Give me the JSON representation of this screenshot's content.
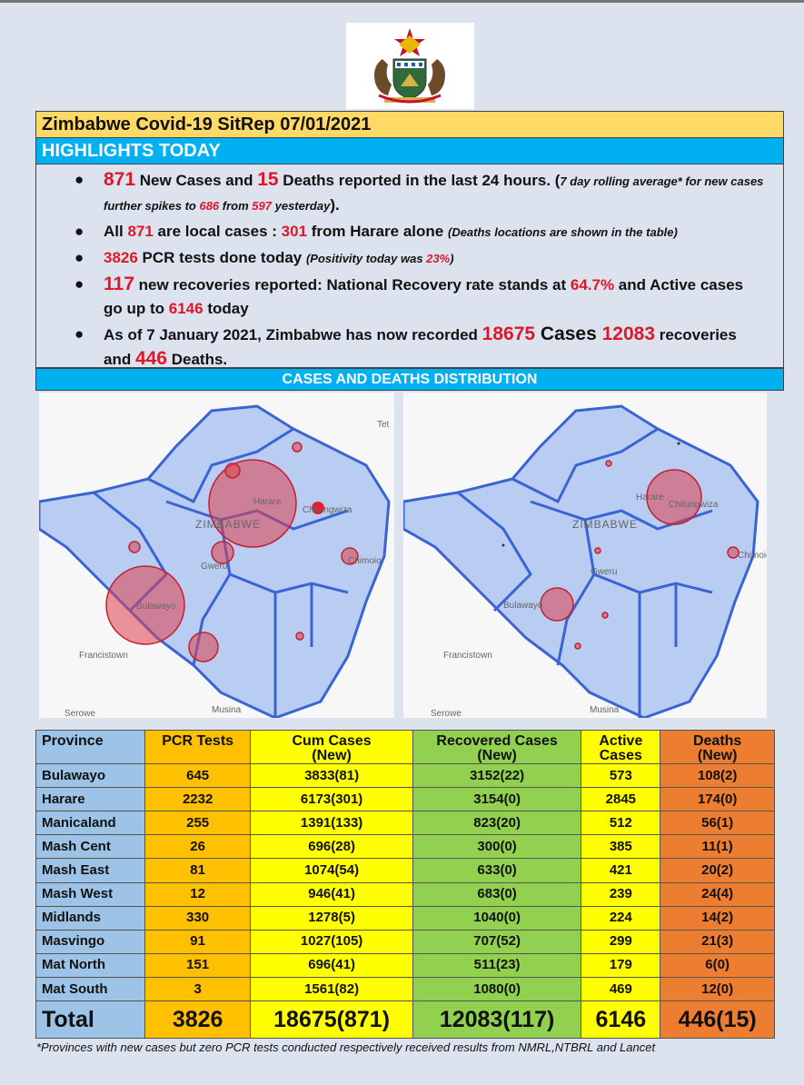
{
  "header": {
    "title": "Zimbabwe Covid-19 SitRep 07/01/2021",
    "highlights_label": "HIGHLIGHTS TODAY",
    "distribution_label": "CASES AND DEATHS DISTRIBUTION"
  },
  "highlights": {
    "b1": {
      "new_cases": "871",
      "t1": " New Cases and ",
      "deaths": "15",
      "t2": " Deaths reported in the last 24 hours. (",
      "n1": "7 day rolling average* for new cases further spikes to ",
      "avg": "686",
      "n2": " from ",
      "prev": "597",
      "n3": " yesterday",
      "t3": ")."
    },
    "b2": {
      "t1": "All ",
      "local": "871",
      "t2": " are local cases : ",
      "harare": "301",
      "t3": " from Harare alone ",
      "note": "(Deaths locations are shown in the table)"
    },
    "b3": {
      "tests": "3826",
      "t1": " PCR tests done today ",
      "n1": "(Positivity today was ",
      "pos": "23%",
      "n2": ")"
    },
    "b4": {
      "recov": "117",
      "t1": " new recoveries reported: National Recovery rate stands at ",
      "rate": "64.7%",
      "t2": " and Active cases go up to ",
      "active": "6146",
      "t3": " today"
    },
    "b5": {
      "t1": "As of 7 January 2021, Zimbabwe has now recorded ",
      "cases": "18675",
      "t2": " Cases ",
      "recov": "12083",
      "t3": " recoveries and ",
      "deaths": "446",
      "t4": " Deaths."
    }
  },
  "map_labels": {
    "tet": "Tet",
    "harare": "Harare",
    "chitungwiza": "Chitungwiza",
    "zimbabwe": "ZIMBABWE",
    "gweru": "Gweru",
    "bulawayo": "Bulawayo",
    "francistown": "Francistown",
    "serowe": "Serowe",
    "musina": "Musina",
    "chimoio": "Chimoio"
  },
  "table": {
    "headers": {
      "province": "Province",
      "pcr": "PCR Tests",
      "cum1": "Cum Cases",
      "cum2": "(New)",
      "rec1": "Recovered Cases",
      "rec2": "(New)",
      "act1": "Active",
      "act2": "Cases",
      "dea1": "Deaths",
      "dea2": "(New)"
    },
    "rows": [
      {
        "province": "Bulawayo",
        "pcr": "645",
        "cum": "3833(81)",
        "rec": "3152(22)",
        "active": "573",
        "deaths": "108(2)"
      },
      {
        "province": "Harare",
        "pcr": "2232",
        "cum": "6173(301)",
        "rec": "3154(0)",
        "active": "2845",
        "deaths": "174(0)"
      },
      {
        "province": "Manicaland",
        "pcr": "255",
        "cum": "1391(133)",
        "rec": "823(20)",
        "active": "512",
        "deaths": "56(1)"
      },
      {
        "province": "Mash Cent",
        "pcr": "26",
        "cum": "696(28)",
        "rec": "300(0)",
        "active": "385",
        "deaths": "11(1)"
      },
      {
        "province": "Mash East",
        "pcr": "81",
        "cum": "1074(54)",
        "rec": "633(0)",
        "active": "421",
        "deaths": "20(2)"
      },
      {
        "province": "Mash West",
        "pcr": "12",
        "cum": "946(41)",
        "rec": "683(0)",
        "active": "239",
        "deaths": "24(4)"
      },
      {
        "province": "Midlands",
        "pcr": "330",
        "cum": "1278(5)",
        "rec": "1040(0)",
        "active": "224",
        "deaths": "14(2)"
      },
      {
        "province": "Masvingo",
        "pcr": "91",
        "cum": "1027(105)",
        "rec": "707(52)",
        "active": "299",
        "deaths": "21(3)"
      },
      {
        "province": "Mat North",
        "pcr": "151",
        "cum": "696(41)",
        "rec": "511(23)",
        "active": "179",
        "deaths": "6(0)"
      },
      {
        "province": "Mat South",
        "pcr": "3",
        "cum": "1561(82)",
        "rec": "1080(0)",
        "active": "469",
        "deaths": "12(0)"
      }
    ],
    "total": {
      "province": "Total",
      "pcr": "3826",
      "cum": "18675(871)",
      "rec": "12083(117)",
      "active": "6146",
      "deaths": "446(15)"
    }
  },
  "footnote": "*Provinces  with new cases but zero  PCR tests conducted respectively received results from NMRL,NTBRL and Lancet",
  "colors": {
    "title_bg": "#ffd966",
    "highlight_bg": "#00b0f0",
    "highlight_red": "#e0162b",
    "province_col": "#9dc3e6",
    "pcr_col": "#ffc000",
    "cum_col": "#ffff00",
    "rec_col": "#92d050",
    "active_col": "#ffff00",
    "deaths_col": "#ed7d31",
    "bubble": "#e0404f",
    "map_fill": "#b9cdf2",
    "map_border": "#3a64d4"
  },
  "icons": {
    "coat_of_arms": "zimbabwe-coat-of-arms-icon",
    "bullet": "bullet-icon"
  }
}
